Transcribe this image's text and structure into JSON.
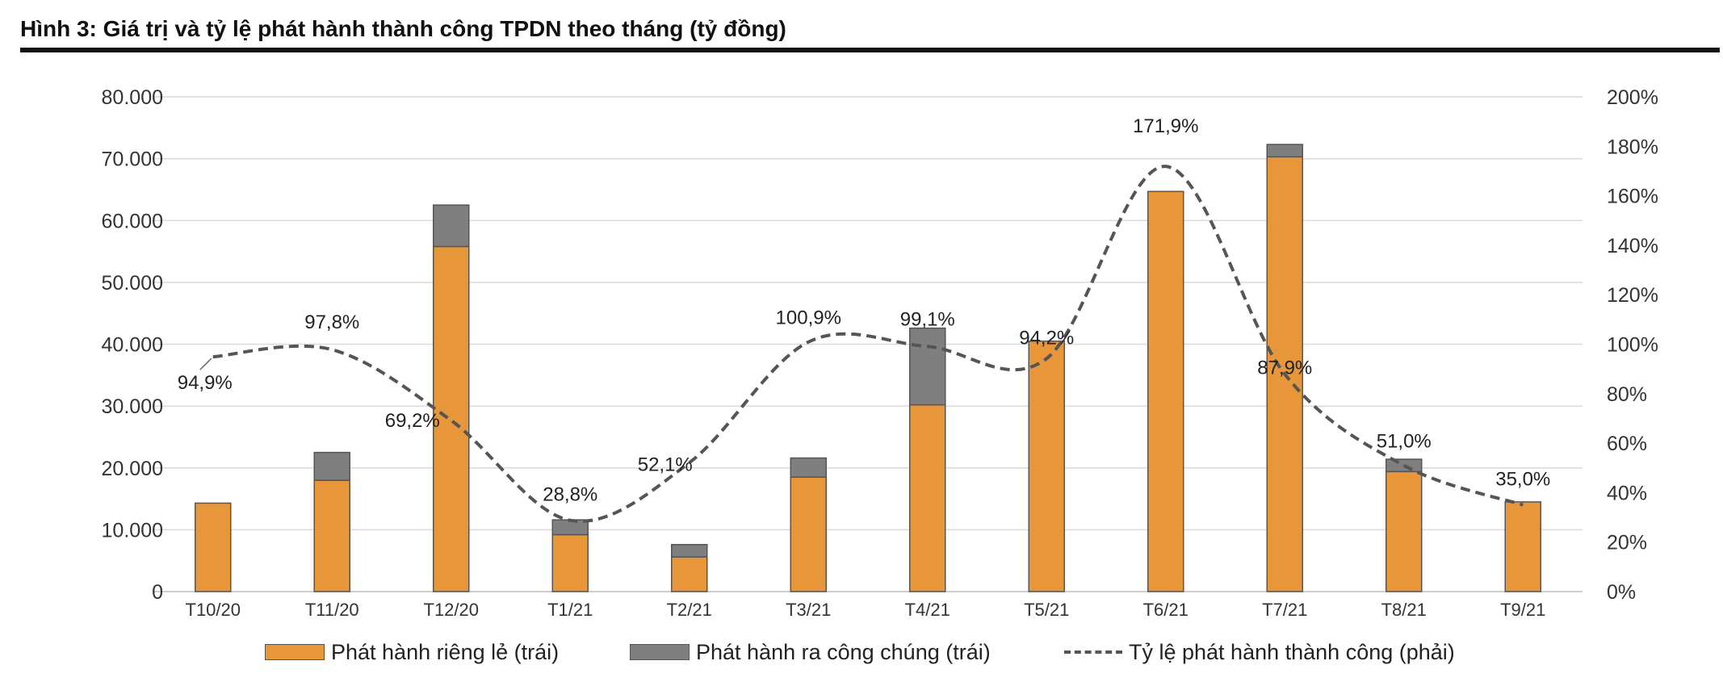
{
  "header": {
    "title": "Hình 3: Giá trị và tỷ lệ phát hành thành công TPDN theo tháng (tỷ đồng)"
  },
  "colors": {
    "private": "#E8963A",
    "public": "#7F7F80",
    "ratio_line": "#555555",
    "grid": "#D9D9D9"
  },
  "legend": {
    "private_label": "Phát hành riêng lẻ (trái)",
    "public_label": "Phát hành ra công chúng (trái)",
    "ratio_label": "Tỷ lệ phát hành thành công (phải)"
  },
  "chart_data": {
    "type": "bar",
    "stacked": true,
    "categories": [
      "T10/20",
      "T11/20",
      "T12/20",
      "T1/21",
      "T2/21",
      "T3/21",
      "T4/21",
      "T5/21",
      "T6/21",
      "T7/21",
      "T8/21",
      "T9/21"
    ],
    "series": [
      {
        "name": "Phát hành riêng lẻ (trái)",
        "axis": "left",
        "values": [
          14300,
          18000,
          55800,
          9200,
          5600,
          18500,
          30200,
          40500,
          64700,
          70300,
          19400,
          14500
        ]
      },
      {
        "name": "Phát hành ra công chúng (trái)",
        "axis": "left",
        "values": [
          0,
          4500,
          6700,
          2400,
          2000,
          3100,
          12400,
          0,
          0,
          2000,
          2000,
          0
        ]
      },
      {
        "name": "Tỷ lệ phát hành thành công (phải)",
        "axis": "right",
        "type": "line",
        "style": "dashed",
        "smooth": true,
        "values": [
          94.9,
          97.8,
          69.2,
          28.8,
          52.1,
          100.9,
          99.1,
          94.2,
          171.9,
          87.9,
          51.0,
          35.0
        ]
      }
    ],
    "point_labels": [
      "94,9%",
      "97,8%",
      "69,2%",
      "28,8%",
      "52,1%",
      "100,9%",
      "99,1%",
      "94,2%",
      "171,9%",
      "87,9%",
      "51,0%",
      "35,0%"
    ],
    "left_axis": {
      "ylim": [
        0,
        80000
      ],
      "ticks": [
        "0",
        "10.000",
        "20.000",
        "30.000",
        "40.000",
        "50.000",
        "60.000",
        "70.000",
        "80.000"
      ]
    },
    "right_axis": {
      "ylim": [
        0,
        200
      ],
      "ticks": [
        "0%",
        "20%",
        "40%",
        "60%",
        "80%",
        "100%",
        "120%",
        "140%",
        "160%",
        "180%",
        "200%"
      ]
    },
    "grid": true,
    "legend_position": "bottom"
  }
}
